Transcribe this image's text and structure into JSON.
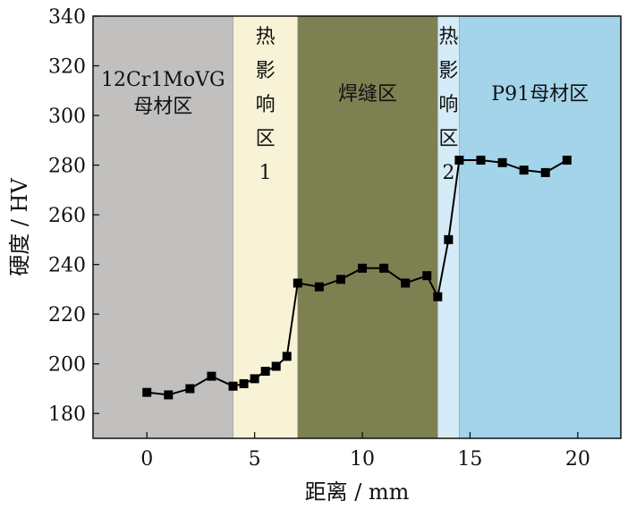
{
  "chart_data": {
    "type": "line",
    "title": "",
    "xlabel": "距离 / mm",
    "ylabel": "硬度 / HV",
    "xlim": [
      -2.5,
      22
    ],
    "ylim": [
      170,
      340
    ],
    "xticks": [
      0,
      5,
      10,
      15,
      20
    ],
    "yticks": [
      180,
      200,
      220,
      240,
      260,
      280,
      300,
      320,
      340
    ],
    "grid": false,
    "regions": [
      {
        "label_lines": [
          "12Cr1MoVG",
          "母材区"
        ],
        "from": -2.5,
        "to": 4,
        "color": "#c1c0bf"
      },
      {
        "label_lines": [
          "热",
          "影",
          "响",
          "区",
          "1"
        ],
        "from": 4,
        "to": 7,
        "color": "#f8f3d6"
      },
      {
        "label_lines": [
          "焊缝区"
        ],
        "from": 7,
        "to": 13.5,
        "color": "#7d8152"
      },
      {
        "label_lines": [
          "热",
          "影",
          "响",
          "区",
          "2"
        ],
        "from": 13.5,
        "to": 14.5,
        "color": "#d5ebf7"
      },
      {
        "label_lines": [
          "P91母材区"
        ],
        "from": 14.5,
        "to": 22,
        "color": "#a3d4ea"
      }
    ],
    "series": [
      {
        "name": "hardness",
        "color": "#000000",
        "x": [
          0,
          1,
          2,
          3,
          4,
          4.5,
          5,
          5.5,
          6,
          6.5,
          7,
          8,
          9,
          10,
          11,
          12,
          13,
          13.5,
          14,
          14.5,
          15.5,
          16.5,
          17.5,
          18.5,
          19.5
        ],
        "y": [
          188.5,
          187.5,
          190,
          195,
          191,
          192,
          194,
          197,
          199,
          203,
          232.5,
          231,
          234,
          238.5,
          238.5,
          232.5,
          235.5,
          227,
          250,
          282,
          282,
          281,
          278,
          277,
          282
        ]
      }
    ]
  }
}
